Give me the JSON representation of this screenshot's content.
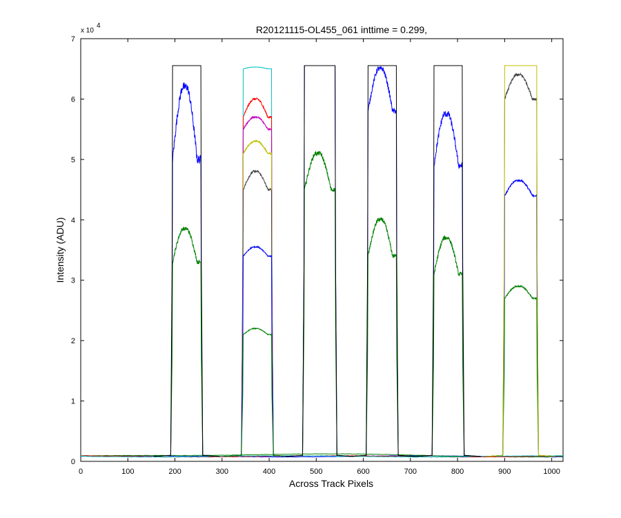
{
  "chart_data": {
    "type": "line",
    "title": "R20121115-OL455_061 inttime = 0.299,",
    "xlabel": "Across Track Pixels",
    "ylabel": "Intensity (ADU)",
    "xlim": [
      0,
      1024
    ],
    "ylim": [
      0,
      70000
    ],
    "y_multiplier_label": "x 10",
    "y_multiplier_exponent": "4",
    "xticks": [
      0,
      100,
      200,
      300,
      400,
      500,
      600,
      700,
      800,
      900,
      1000
    ],
    "xtick_labels": [
      "0",
      "100",
      "200",
      "300",
      "400",
      "500",
      "600",
      "700",
      "800",
      "900",
      "1000"
    ],
    "yticks": [
      0,
      10000,
      20000,
      30000,
      40000,
      50000,
      60000,
      70000
    ],
    "ytick_labels": [
      "0",
      "1",
      "2",
      "3",
      "4",
      "5",
      "6",
      "7"
    ],
    "grid": false,
    "baseline": 800,
    "saturation": 65535,
    "bands": [
      {
        "x_start": 195,
        "x_end": 255,
        "peaks": [
          {
            "color": "#0000ff",
            "start": 50000,
            "peak": 62000
          },
          {
            "color": "#008000",
            "start": 33000,
            "peak": 38500
          },
          {
            "color": "#000000",
            "start": 65535,
            "peak": 65535
          }
        ]
      },
      {
        "x_start": 345,
        "x_end": 405,
        "peaks": [
          {
            "color": "#00bfbf",
            "start": 65000,
            "peak": 65300
          },
          {
            "color": "#ff0000",
            "start": 57000,
            "peak": 60000
          },
          {
            "color": "#bf00bf",
            "start": 55000,
            "peak": 57000
          },
          {
            "color": "#bfbf00",
            "start": 51000,
            "peak": 53000
          },
          {
            "color": "#404040",
            "start": 45000,
            "peak": 48000
          },
          {
            "color": "#0000ff",
            "start": 34000,
            "peak": 35500
          },
          {
            "color": "#008000",
            "start": 21000,
            "peak": 22000
          }
        ]
      },
      {
        "x_start": 475,
        "x_end": 540,
        "peaks": [
          {
            "color": "#0000ff",
            "start": 65535,
            "peak": 65535
          },
          {
            "color": "#008000",
            "start": 45000,
            "peak": 51000
          },
          {
            "color": "#000000",
            "start": 65535,
            "peak": 65535
          }
        ]
      },
      {
        "x_start": 610,
        "x_end": 670,
        "peaks": [
          {
            "color": "#0000ff",
            "start": 58000,
            "peak": 65000
          },
          {
            "color": "#008000",
            "start": 34000,
            "peak": 40000
          },
          {
            "color": "#000000",
            "start": 65535,
            "peak": 65535
          }
        ]
      },
      {
        "x_start": 750,
        "x_end": 810,
        "peaks": [
          {
            "color": "#0000ff",
            "start": 49000,
            "peak": 57500
          },
          {
            "color": "#008000",
            "start": 31000,
            "peak": 37000
          },
          {
            "color": "#000000",
            "start": 65535,
            "peak": 65535
          }
        ]
      },
      {
        "x_start": 900,
        "x_end": 968,
        "peaks": [
          {
            "color": "#404040",
            "start": 60000,
            "peak": 64000
          },
          {
            "color": "#0000ff",
            "start": 44000,
            "peak": 46500
          },
          {
            "color": "#008000",
            "start": 27000,
            "peak": 29000
          },
          {
            "color": "#bfbf00",
            "start": 65535,
            "peak": 65535
          }
        ]
      }
    ]
  }
}
